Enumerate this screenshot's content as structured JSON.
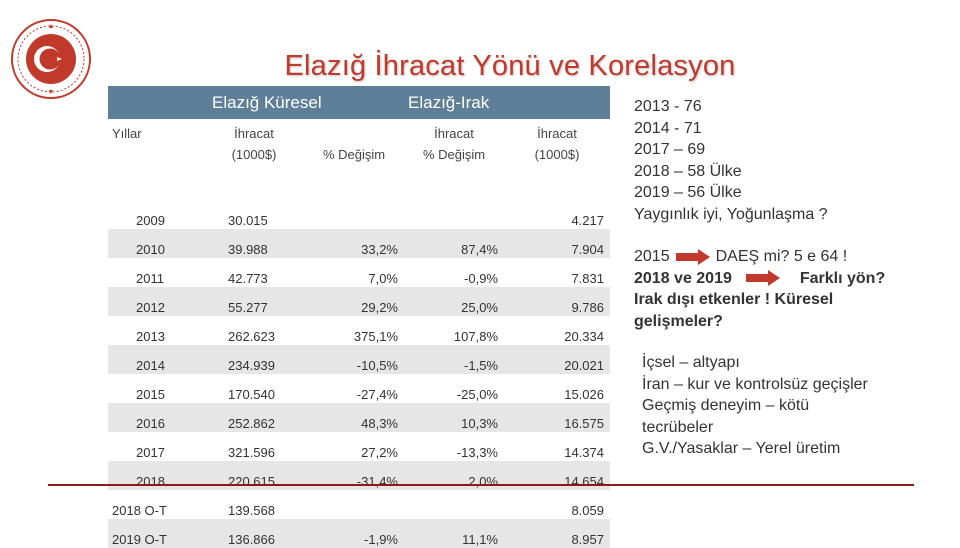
{
  "title": "Elazığ İhracat Yönü ve Korelasyon",
  "table": {
    "group_headers": {
      "global": "Elazığ Küresel",
      "iraq": "Elazığ-Irak"
    },
    "col_headers": {
      "years": "Yıllar",
      "export_1000": "İhracat (1000$)",
      "change_global": "% Değişim",
      "change_iraq": "İhracat % Değişim",
      "export_iraq": "İhracat (1000$)"
    },
    "rows": [
      {
        "year": "2009",
        "export": "30.015",
        "change": "",
        "change_iraq": "",
        "export_iraq": "4.217"
      },
      {
        "year": "2010",
        "export": "39.988",
        "change": "33,2%",
        "change_iraq": "87,4%",
        "export_iraq": "7.904"
      },
      {
        "year": "2011",
        "export": "42.773",
        "change": "7,0%",
        "change_iraq": "-0,9%",
        "export_iraq": "7.831"
      },
      {
        "year": "2012",
        "export": "55.277",
        "change": "29,2%",
        "change_iraq": "25,0%",
        "export_iraq": "9.786"
      },
      {
        "year": "2013",
        "export": "262.623",
        "change": "375,1%",
        "change_iraq": "107,8%",
        "export_iraq": "20.334"
      },
      {
        "year": "2014",
        "export": "234.939",
        "change": "-10,5%",
        "change_iraq": "-1,5%",
        "export_iraq": "20.021"
      },
      {
        "year": "2015",
        "export": "170.540",
        "change": "-27,4%",
        "change_iraq": "-25,0%",
        "export_iraq": "15.026"
      },
      {
        "year": "2016",
        "export": "252.862",
        "change": "48,3%",
        "change_iraq": "10,3%",
        "export_iraq": "16.575"
      },
      {
        "year": "2017",
        "export": "321.596",
        "change": "27,2%",
        "change_iraq": "-13,3%",
        "export_iraq": "14.374"
      },
      {
        "year": "2018",
        "export": "220.615",
        "change": "-31,4%",
        "change_iraq": "2,0%",
        "export_iraq": "14.654"
      },
      {
        "year": "2018 O-T",
        "export": "139.568",
        "change": "",
        "change_iraq": "",
        "export_iraq": "8.059"
      },
      {
        "year": "2019 O-T",
        "export": "136.866",
        "change": "-1,9%",
        "change_iraq": "11,1%",
        "export_iraq": "8.957"
      }
    ]
  },
  "notes1": [
    "2013 - 76",
    "2014 - 71",
    "2017 – 69",
    "2018 – 58 Ülke",
    "2019 – 56 Ülke",
    "Yaygınlık iyi, Yoğunlaşma ?"
  ],
  "notes2": {
    "line1_left": "2015",
    "line1_right": "DAEŞ mi? 5 e 64 !",
    "line2_left": "2018 ve 2019",
    "line2_right": "Farklı yön?",
    "line3": "Irak dışı etkenler ! Küresel",
    "line4": "gelişmeler?"
  },
  "notes3": [
    "İçsel – altyapı",
    "İran – kur ve kontrolsüz geçişler",
    "Geçmiş deneyim – kötü",
    "tecrübeler",
    "G.V./Yasaklar – Yerel üretim"
  ],
  "colors": {
    "title": "#c0392b",
    "header": "#5e7f97",
    "arrow": "#c0392b",
    "rule": "#8b1a1a",
    "alt_row": "#e6e6e6"
  }
}
